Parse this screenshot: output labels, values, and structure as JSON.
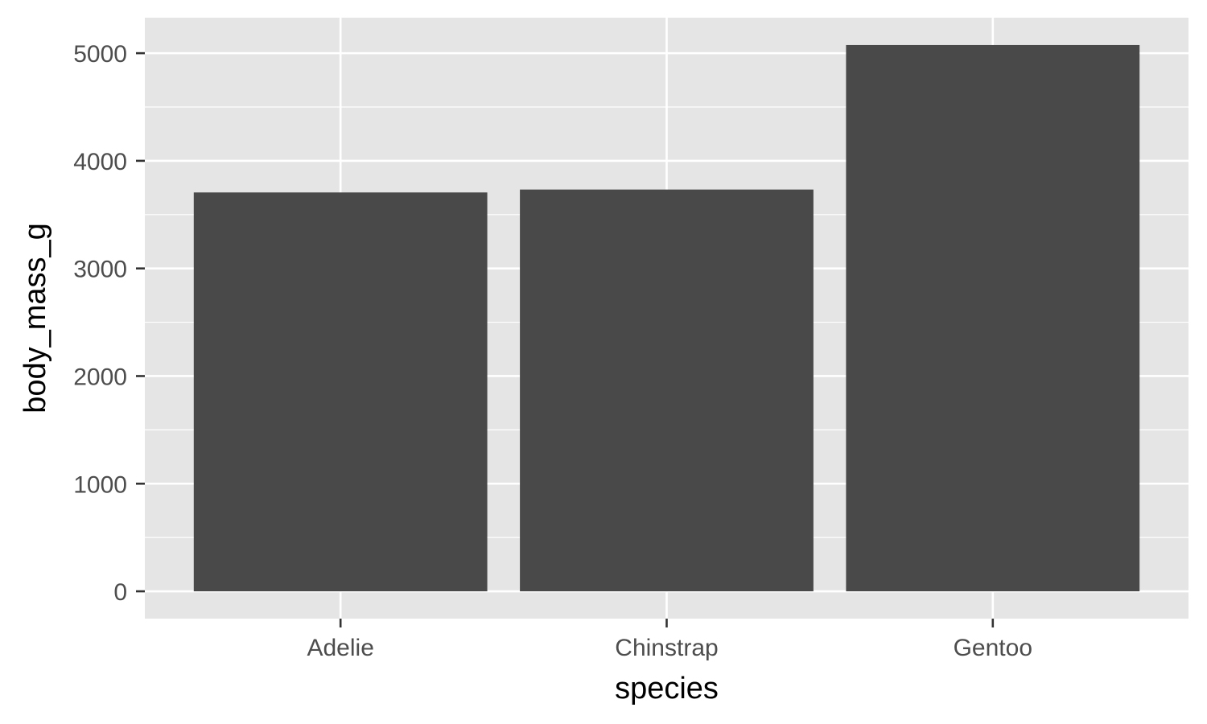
{
  "chart_data": {
    "type": "bar",
    "categories": [
      "Adelie",
      "Chinstrap",
      "Gentoo"
    ],
    "values": [
      3706,
      3733,
      5076
    ],
    "xlabel": "species",
    "ylabel": "body_mass_g",
    "yticks": [
      0,
      1000,
      2000,
      3000,
      4000,
      5000
    ],
    "ytick_labels": [
      "0",
      "1000",
      "2000",
      "3000",
      "4000",
      "5000"
    ],
    "ylim": [
      -253.8,
      5329.8
    ],
    "grid": true,
    "legend": "none"
  },
  "colors": {
    "panel_background": "#E5E5E5",
    "gridline": "#FFFFFF",
    "bar_fill": "#494949",
    "tick_mark": "#333333",
    "tick_label": "#4D4D4D",
    "axis_title": "#000000"
  }
}
